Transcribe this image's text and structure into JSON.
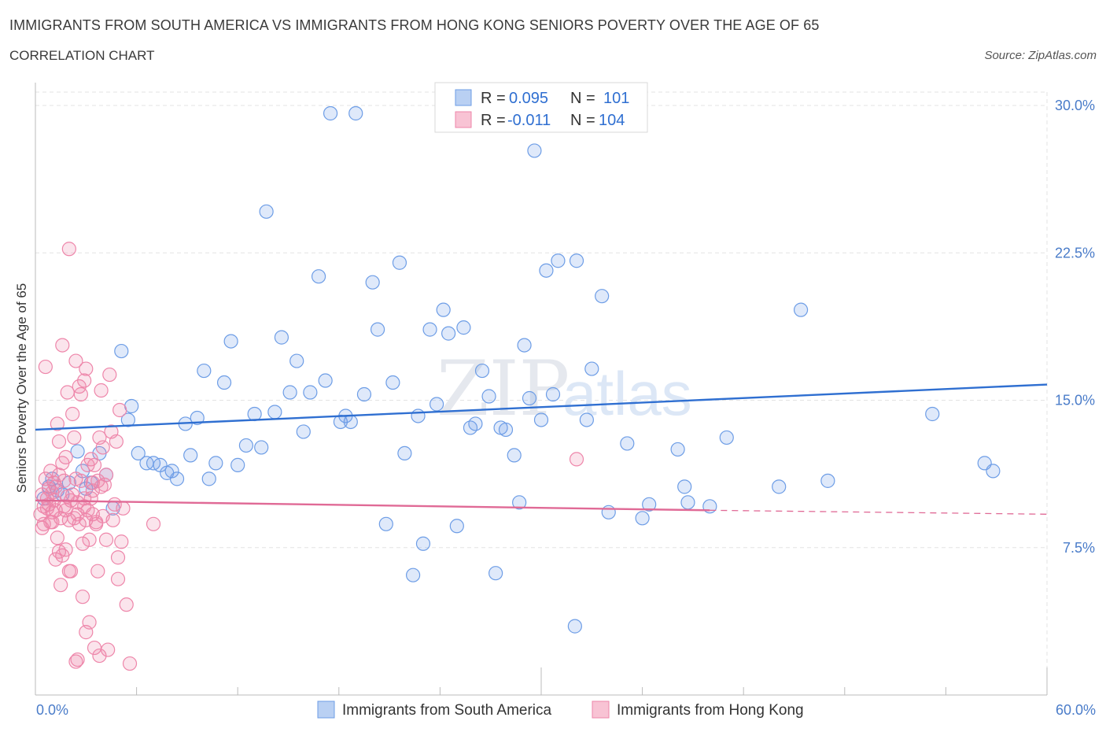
{
  "title": "IMMIGRANTS FROM SOUTH AMERICA VS IMMIGRANTS FROM HONG KONG SENIORS POVERTY OVER THE AGE OF 65",
  "subtitle": "CORRELATION CHART",
  "source": "Source: ZipAtlas.com",
  "watermark": {
    "zip": "ZIP",
    "atlas": "atlas"
  },
  "colors": {
    "blue": "#6d9de6",
    "blue_line": "#2f6fd1",
    "pink": "#ee86aa",
    "pink_line": "#e06a96",
    "axis_label": "#4a7cc9"
  },
  "legend": {
    "rows": [
      {
        "r_label": "R =",
        "r_value": "0.095",
        "n_label": "N =",
        "n_value": "101",
        "color": "blue"
      },
      {
        "r_label": "R =",
        "r_value": "-0.011",
        "n_label": "N =",
        "n_value": "104",
        "color": "pink"
      }
    ]
  },
  "chart_data": {
    "type": "scatter",
    "title": "IMMIGRANTS FROM SOUTH AMERICA VS IMMIGRANTS FROM HONG KONG SENIORS POVERTY OVER THE AGE OF 65",
    "ylabel": "Seniors Poverty Over the Age of 65",
    "xlim": [
      0,
      60
    ],
    "ylim": [
      0,
      30
    ],
    "x_tick_labels": [
      "0.0%",
      "60.0%"
    ],
    "y_ticks": [
      7.5,
      15.0,
      22.5,
      30.0
    ],
    "y_tick_labels": [
      "7.5%",
      "15.0%",
      "22.5%",
      "30.0%"
    ],
    "grid": true,
    "legend_position": "top-center",
    "series": [
      {
        "name": "Immigrants from South America",
        "color": "blue",
        "trend": {
          "x": [
            0,
            60
          ],
          "y": [
            13.5,
            15.8
          ]
        },
        "points": [
          [
            0.5,
            10.0
          ],
          [
            0.8,
            10.6
          ],
          [
            1.0,
            11.0
          ],
          [
            1.3,
            10.4
          ],
          [
            1.6,
            10.2
          ],
          [
            2.0,
            10.8
          ],
          [
            2.5,
            12.4
          ],
          [
            2.8,
            11.4
          ],
          [
            3.0,
            10.5
          ],
          [
            3.3,
            10.8
          ],
          [
            3.8,
            12.3
          ],
          [
            4.2,
            11.2
          ],
          [
            4.6,
            9.5
          ],
          [
            5.1,
            17.5
          ],
          [
            5.5,
            14.0
          ],
          [
            5.7,
            14.7
          ],
          [
            6.1,
            12.3
          ],
          [
            6.6,
            11.8
          ],
          [
            7.0,
            11.8
          ],
          [
            7.4,
            11.7
          ],
          [
            7.8,
            11.3
          ],
          [
            8.1,
            11.4
          ],
          [
            8.4,
            11.0
          ],
          [
            8.9,
            13.8
          ],
          [
            9.2,
            12.2
          ],
          [
            9.6,
            14.1
          ],
          [
            10.0,
            16.5
          ],
          [
            10.3,
            11.0
          ],
          [
            10.7,
            11.8
          ],
          [
            11.2,
            15.9
          ],
          [
            11.6,
            18.0
          ],
          [
            12.0,
            11.7
          ],
          [
            12.5,
            12.7
          ],
          [
            13.0,
            14.3
          ],
          [
            13.4,
            12.6
          ],
          [
            13.7,
            24.6
          ],
          [
            14.2,
            14.4
          ],
          [
            14.6,
            18.2
          ],
          [
            15.1,
            15.4
          ],
          [
            15.5,
            17.0
          ],
          [
            15.9,
            13.4
          ],
          [
            16.3,
            15.4
          ],
          [
            16.8,
            21.3
          ],
          [
            17.2,
            16.0
          ],
          [
            17.5,
            29.6
          ],
          [
            18.1,
            13.9
          ],
          [
            18.4,
            14.2
          ],
          [
            18.7,
            13.9
          ],
          [
            19.0,
            29.6
          ],
          [
            19.5,
            15.3
          ],
          [
            20.0,
            21.0
          ],
          [
            20.3,
            18.6
          ],
          [
            20.8,
            8.7
          ],
          [
            21.2,
            15.9
          ],
          [
            21.6,
            22.0
          ],
          [
            21.9,
            12.3
          ],
          [
            22.4,
            6.1
          ],
          [
            22.7,
            14.2
          ],
          [
            23.0,
            7.7
          ],
          [
            23.4,
            18.6
          ],
          [
            23.8,
            14.8
          ],
          [
            24.2,
            19.6
          ],
          [
            24.5,
            18.4
          ],
          [
            25.0,
            8.6
          ],
          [
            25.4,
            18.7
          ],
          [
            25.8,
            13.6
          ],
          [
            26.1,
            13.8
          ],
          [
            26.5,
            16.5
          ],
          [
            26.9,
            15.2
          ],
          [
            27.3,
            6.2
          ],
          [
            27.6,
            13.6
          ],
          [
            27.9,
            13.5
          ],
          [
            28.4,
            12.2
          ],
          [
            28.7,
            9.8
          ],
          [
            29.0,
            17.8
          ],
          [
            29.3,
            15.1
          ],
          [
            29.6,
            27.7
          ],
          [
            30.0,
            14.0
          ],
          [
            30.3,
            21.6
          ],
          [
            30.7,
            15.3
          ],
          [
            31.0,
            22.1
          ],
          [
            32.0,
            3.5
          ],
          [
            32.1,
            22.1
          ],
          [
            32.7,
            14.0
          ],
          [
            33.0,
            16.6
          ],
          [
            33.6,
            20.3
          ],
          [
            34.0,
            9.3
          ],
          [
            35.1,
            12.8
          ],
          [
            36.0,
            9.0
          ],
          [
            36.4,
            9.7
          ],
          [
            38.1,
            12.5
          ],
          [
            38.5,
            10.6
          ],
          [
            38.7,
            9.8
          ],
          [
            40.0,
            9.6
          ],
          [
            41.0,
            13.1
          ],
          [
            44.1,
            10.6
          ],
          [
            45.4,
            19.6
          ],
          [
            47.0,
            10.9
          ],
          [
            53.2,
            14.3
          ],
          [
            56.3,
            11.8
          ],
          [
            56.8,
            11.4
          ]
        ]
      },
      {
        "name": "Immigrants from Hong Kong",
        "color": "pink",
        "trend": {
          "x": [
            0,
            40
          ],
          "y": [
            9.9,
            9.4
          ]
        },
        "trend_dashed": {
          "x": [
            40,
            60
          ],
          "y": [
            9.4,
            9.2
          ]
        },
        "points": [
          [
            0.3,
            9.2
          ],
          [
            0.4,
            10.2
          ],
          [
            0.5,
            8.7
          ],
          [
            0.5,
            9.6
          ],
          [
            0.6,
            16.7
          ],
          [
            0.6,
            11.0
          ],
          [
            0.7,
            10.0
          ],
          [
            0.8,
            9.7
          ],
          [
            0.8,
            10.5
          ],
          [
            0.9,
            11.4
          ],
          [
            1.0,
            9.3
          ],
          [
            1.0,
            8.8
          ],
          [
            1.1,
            9.9
          ],
          [
            1.1,
            10.8
          ],
          [
            1.2,
            9.4
          ],
          [
            1.2,
            10.6
          ],
          [
            1.3,
            13.8
          ],
          [
            1.3,
            8.0
          ],
          [
            1.4,
            12.9
          ],
          [
            1.4,
            11.2
          ],
          [
            1.5,
            9.0
          ],
          [
            1.5,
            5.6
          ],
          [
            1.6,
            17.8
          ],
          [
            1.6,
            7.1
          ],
          [
            1.6,
            11.8
          ],
          [
            1.7,
            9.6
          ],
          [
            1.7,
            10.9
          ],
          [
            1.8,
            9.4
          ],
          [
            1.8,
            12.1
          ],
          [
            1.9,
            10.1
          ],
          [
            1.9,
            15.4
          ],
          [
            2.0,
            8.9
          ],
          [
            2.0,
            22.7
          ],
          [
            2.1,
            9.9
          ],
          [
            2.1,
            6.3
          ],
          [
            2.2,
            10.2
          ],
          [
            2.2,
            14.3
          ],
          [
            2.3,
            9.0
          ],
          [
            2.3,
            13.1
          ],
          [
            2.4,
            1.7
          ],
          [
            2.4,
            17.0
          ],
          [
            2.4,
            11.0
          ],
          [
            2.5,
            1.8
          ],
          [
            2.5,
            9.8
          ],
          [
            2.6,
            15.7
          ],
          [
            2.6,
            8.7
          ],
          [
            2.7,
            10.9
          ],
          [
            2.7,
            15.3
          ],
          [
            2.8,
            7.7
          ],
          [
            2.8,
            5.0
          ],
          [
            2.9,
            16.0
          ],
          [
            2.9,
            10.0
          ],
          [
            3.0,
            3.2
          ],
          [
            3.0,
            8.9
          ],
          [
            3.0,
            16.6
          ],
          [
            3.1,
            11.7
          ],
          [
            3.1,
            9.4
          ],
          [
            3.2,
            7.9
          ],
          [
            3.2,
            3.7
          ],
          [
            3.3,
            10.0
          ],
          [
            3.3,
            12.0
          ],
          [
            3.4,
            9.2
          ],
          [
            3.4,
            10.8
          ],
          [
            3.5,
            2.4
          ],
          [
            3.5,
            11.7
          ],
          [
            3.6,
            8.7
          ],
          [
            3.7,
            10.9
          ],
          [
            3.7,
            6.3
          ],
          [
            3.8,
            2.0
          ],
          [
            3.8,
            13.1
          ],
          [
            3.9,
            10.6
          ],
          [
            3.9,
            15.5
          ],
          [
            4.0,
            12.6
          ],
          [
            4.1,
            10.7
          ],
          [
            4.2,
            7.9
          ],
          [
            4.2,
            11.2
          ],
          [
            4.3,
            2.3
          ],
          [
            4.4,
            16.3
          ],
          [
            4.5,
            13.4
          ],
          [
            4.6,
            8.9
          ],
          [
            4.7,
            9.7
          ],
          [
            4.8,
            12.9
          ],
          [
            4.9,
            5.9
          ],
          [
            4.9,
            7.0
          ],
          [
            5.0,
            14.5
          ],
          [
            5.1,
            7.8
          ],
          [
            5.2,
            9.5
          ],
          [
            5.4,
            4.6
          ],
          [
            5.6,
            1.6
          ],
          [
            7.0,
            8.7
          ],
          [
            0.4,
            8.5
          ],
          [
            0.9,
            8.8
          ],
          [
            1.2,
            6.9
          ],
          [
            1.4,
            7.3
          ],
          [
            1.8,
            7.4
          ],
          [
            2.0,
            6.3
          ],
          [
            2.5,
            9.2
          ],
          [
            2.9,
            9.6
          ],
          [
            3.4,
            10.4
          ],
          [
            3.6,
            8.8
          ],
          [
            4.0,
            9.1
          ],
          [
            1.0,
            10.3
          ],
          [
            32.1,
            12.0
          ],
          [
            0.7,
            9.5
          ]
        ]
      }
    ]
  },
  "bottom_legend": [
    {
      "label": "Immigrants from South America",
      "color": "blue"
    },
    {
      "label": "Immigrants from Hong Kong",
      "color": "pink"
    }
  ]
}
